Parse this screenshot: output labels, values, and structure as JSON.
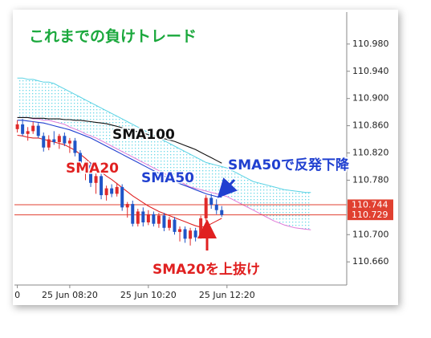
{
  "chart_data": {
    "type": "candlestick",
    "title": "これまでの負けトレード",
    "annotations": [
      "SMA50で反発下降",
      "SMA20を上抜け"
    ],
    "categories": [
      "0",
      null,
      null,
      null,
      null,
      null,
      null,
      null,
      null,
      null,
      "25 Jun 08:20",
      null,
      null,
      null,
      null,
      null,
      null,
      null,
      null,
      null,
      null,
      null,
      null,
      null,
      null,
      "25 Jun 10:20",
      null,
      null,
      null,
      null,
      null,
      null,
      null,
      null,
      null,
      null,
      null,
      null,
      null,
      null,
      "25 Jun 12:20",
      null,
      null,
      null,
      null,
      null,
      null,
      null,
      null,
      null,
      null,
      null,
      null,
      null,
      null,
      null,
      null
    ],
    "open": [
      110.855,
      110.862,
      110.848,
      110.852,
      110.86,
      110.845,
      110.828,
      110.84,
      110.836,
      110.845,
      110.834,
      110.838,
      110.82,
      110.796,
      110.802,
      110.776,
      110.786,
      110.758,
      110.768,
      110.76,
      110.77,
      110.74,
      110.745,
      110.716,
      110.734,
      110.718,
      110.73,
      110.716,
      110.728,
      110.71,
      110.722,
      110.704,
      110.708,
      110.694,
      110.706,
      110.696,
      110.724,
      110.754,
      110.744,
      110.736,
      null,
      null,
      null,
      null,
      null,
      null,
      null,
      null,
      null,
      null,
      null,
      null,
      null,
      null,
      null,
      null,
      null
    ],
    "high": [
      110.868,
      110.87,
      110.858,
      110.866,
      110.864,
      110.85,
      110.846,
      110.852,
      110.848,
      110.85,
      110.842,
      110.842,
      110.824,
      110.808,
      110.806,
      110.79,
      110.79,
      110.772,
      110.774,
      110.776,
      110.774,
      110.748,
      110.75,
      110.738,
      110.74,
      110.736,
      110.734,
      110.732,
      110.732,
      110.726,
      110.726,
      110.712,
      110.712,
      110.71,
      110.71,
      110.728,
      110.758,
      110.76,
      110.752,
      110.742,
      null,
      null,
      null,
      null,
      null,
      null,
      null,
      null,
      null,
      null,
      null,
      null,
      null,
      null,
      null,
      null,
      null
    ],
    "low": [
      110.85,
      110.845,
      110.838,
      110.848,
      110.842,
      110.822,
      110.824,
      110.832,
      110.826,
      110.83,
      110.82,
      110.815,
      110.79,
      110.78,
      110.77,
      110.76,
      110.752,
      110.75,
      110.755,
      110.756,
      110.735,
      110.725,
      110.712,
      110.712,
      110.712,
      110.714,
      110.712,
      110.71,
      110.705,
      110.706,
      110.7,
      110.69,
      110.688,
      110.684,
      110.69,
      110.694,
      110.72,
      110.738,
      110.73,
      110.726,
      null,
      null,
      null,
      null,
      null,
      null,
      null,
      null,
      null,
      null,
      null,
      null,
      null,
      null,
      null,
      null,
      null
    ],
    "close": [
      110.862,
      110.848,
      110.852,
      110.86,
      110.845,
      110.828,
      110.84,
      110.836,
      110.845,
      110.834,
      110.838,
      110.82,
      110.796,
      110.802,
      110.776,
      110.786,
      110.758,
      110.768,
      110.76,
      110.77,
      110.74,
      110.745,
      110.716,
      110.734,
      110.718,
      110.73,
      110.716,
      110.728,
      110.71,
      110.722,
      110.704,
      110.708,
      110.694,
      110.706,
      110.696,
      110.724,
      110.754,
      110.744,
      110.736,
      110.729,
      null,
      null,
      null,
      null,
      null,
      null,
      null,
      null,
      null,
      null,
      null,
      null,
      null,
      null,
      null,
      null,
      null
    ],
    "up_color": "#e02a2a",
    "down_color": "#1f55c8",
    "series": [
      {
        "name": "SMA20",
        "color": "#e02020",
        "values": [
          110.846,
          110.845,
          110.843,
          110.842,
          110.842,
          110.84,
          110.838,
          110.836,
          110.834,
          110.832,
          110.828,
          110.824,
          110.818,
          110.812,
          110.805,
          110.798,
          110.792,
          110.786,
          110.781,
          110.775,
          110.769,
          110.763,
          110.757,
          110.752,
          110.747,
          110.742,
          110.738,
          110.734,
          110.731,
          110.728,
          110.725,
          110.722,
          110.719,
          110.716,
          110.713,
          110.711,
          110.712,
          110.716,
          110.72,
          110.724,
          null,
          null,
          null,
          null,
          null,
          null,
          null,
          null,
          null,
          null,
          null,
          null,
          null,
          null,
          null,
          null,
          null
        ]
      },
      {
        "name": "SMA50",
        "color": "#2040d0",
        "values": [
          110.868,
          110.868,
          110.867,
          110.866,
          110.865,
          110.864,
          110.862,
          110.86,
          110.858,
          110.856,
          110.854,
          110.851,
          110.848,
          110.845,
          110.842,
          110.838,
          110.834,
          110.83,
          110.826,
          110.822,
          110.818,
          110.814,
          110.81,
          110.806,
          110.802,
          110.798,
          110.794,
          110.79,
          110.786,
          110.782,
          110.778,
          110.775,
          110.772,
          110.769,
          110.766,
          110.763,
          110.76,
          110.758,
          110.756,
          110.755,
          null,
          null,
          null,
          null,
          null,
          null,
          null,
          null,
          null,
          null,
          null,
          null,
          null,
          null,
          null,
          null,
          null
        ]
      },
      {
        "name": "SMA100",
        "color": "#111111",
        "values": [
          110.872,
          110.872,
          110.872,
          110.871,
          110.871,
          110.871,
          110.87,
          110.87,
          110.87,
          110.869,
          110.869,
          110.868,
          110.868,
          110.867,
          110.866,
          110.865,
          110.864,
          110.863,
          110.861,
          110.859,
          110.857,
          110.855,
          110.853,
          110.851,
          110.849,
          110.847,
          110.845,
          110.843,
          110.841,
          110.839,
          110.837,
          110.834,
          110.831,
          110.828,
          110.825,
          110.821,
          110.817,
          110.813,
          110.809,
          110.805,
          null,
          null,
          null,
          null,
          null,
          null,
          null,
          null,
          null,
          null,
          null,
          null,
          null,
          null,
          null,
          null,
          null
        ]
      }
    ],
    "cloud": {
      "color_a": "#58d2e4",
      "color_b": "#e07ad8",
      "span_a": [
        110.93,
        110.93,
        110.928,
        110.928,
        110.926,
        110.924,
        110.924,
        110.922,
        110.918,
        110.914,
        110.91,
        110.906,
        110.902,
        110.898,
        110.894,
        110.89,
        110.886,
        110.882,
        110.878,
        110.874,
        110.87,
        110.866,
        110.862,
        110.858,
        110.854,
        110.85,
        110.846,
        110.842,
        110.838,
        110.834,
        110.83,
        110.826,
        110.822,
        110.818,
        110.814,
        110.81,
        110.806,
        110.804,
        110.802,
        110.8,
        110.798,
        110.794,
        110.79,
        110.786,
        110.782,
        110.778,
        110.776,
        110.774,
        110.772,
        110.77,
        110.768,
        110.766,
        110.765,
        110.764,
        110.763,
        110.762,
        110.762
      ],
      "span_b": [
        110.872,
        110.872,
        110.872,
        110.87,
        110.87,
        110.868,
        110.868,
        110.866,
        110.864,
        110.862,
        110.858,
        110.855,
        110.852,
        110.848,
        110.845,
        110.842,
        110.838,
        110.834,
        110.83,
        110.826,
        110.822,
        110.818,
        110.814,
        110.81,
        110.806,
        110.802,
        110.798,
        110.794,
        110.79,
        110.786,
        110.782,
        110.778,
        110.774,
        110.77,
        110.768,
        110.766,
        110.764,
        110.762,
        110.76,
        110.758,
        110.756,
        110.752,
        110.748,
        110.744,
        110.74,
        110.736,
        110.732,
        110.728,
        110.724,
        110.72,
        110.717,
        110.714,
        110.712,
        110.71,
        110.709,
        110.708,
        110.707
      ]
    },
    "price_lines": [
      110.744,
      110.729
    ],
    "price_line_color": "#e04030",
    "ylim": [
      110.626,
      111.027
    ],
    "yticks": [
      {
        "value": 110.66,
        "label": "110.660"
      },
      {
        "value": 110.7,
        "label": "110.700"
      },
      {
        "value": 110.78,
        "label": "110.780"
      },
      {
        "value": 110.82,
        "label": "110.820"
      },
      {
        "value": 110.86,
        "label": "110.860"
      },
      {
        "value": 110.9,
        "label": "110.900"
      },
      {
        "value": 110.94,
        "label": "110.940"
      },
      {
        "value": 110.98,
        "label": "110.980"
      }
    ]
  }
}
